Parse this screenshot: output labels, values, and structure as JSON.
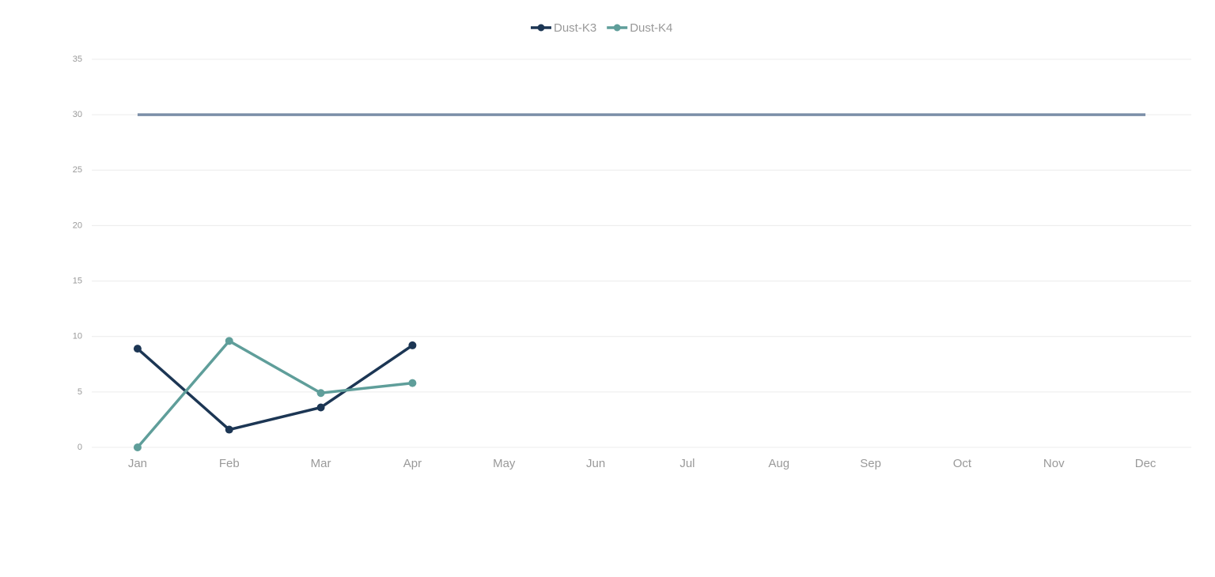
{
  "chart_data": {
    "type": "line",
    "categories": [
      "Jan",
      "Feb",
      "Mar",
      "Apr",
      "May",
      "Jun",
      "Jul",
      "Aug",
      "Sep",
      "Oct",
      "Nov",
      "Dec"
    ],
    "series": [
      {
        "name": "Dust-K3",
        "color": "#1c3654",
        "values": [
          8.9,
          1.6,
          3.6,
          9.2,
          null,
          null,
          null,
          null,
          null,
          null,
          null,
          null
        ]
      },
      {
        "name": "Dust-K4",
        "color": "#5f9e9a",
        "values": [
          0,
          9.6,
          4.9,
          5.8,
          null,
          null,
          null,
          null,
          null,
          null,
          null,
          null
        ]
      }
    ],
    "reference_line": {
      "value": 30,
      "color": "#7b8fa8"
    },
    "ylim": [
      0,
      35
    ],
    "yticks": [
      0,
      5,
      10,
      15,
      20,
      25,
      30,
      35
    ],
    "grid": true,
    "legend": "top"
  }
}
